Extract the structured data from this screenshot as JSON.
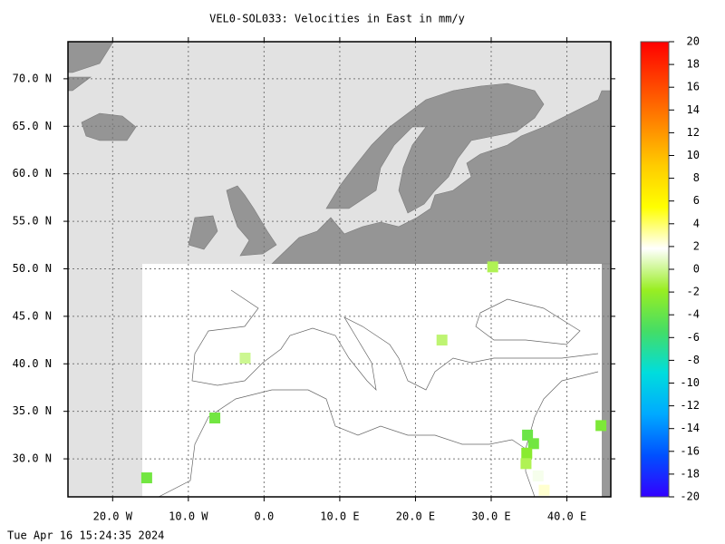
{
  "chart_data": {
    "type": "map",
    "title": "VEL0-SOL033: Velocities in East in mm/y",
    "timestamp": "Tue Apr 16 15:24:35 2024",
    "xlim": [
      -25.9,
      45.8
    ],
    "ylim": [
      26.0,
      73.9
    ],
    "xticks": [
      {
        "value": -20,
        "label": "20.0 W"
      },
      {
        "value": -10,
        "label": "10.0 W"
      },
      {
        "value": 0,
        "label": "0.0"
      },
      {
        "value": 10,
        "label": "10.0 E"
      },
      {
        "value": 20,
        "label": "20.0 E"
      },
      {
        "value": 30,
        "label": "30.0 E"
      },
      {
        "value": 40,
        "label": "40.0 E"
      }
    ],
    "yticks": [
      {
        "value": 30,
        "label": "30.0 N"
      },
      {
        "value": 35,
        "label": "35.0 N"
      },
      {
        "value": 40,
        "label": "40.0 N"
      },
      {
        "value": 45,
        "label": "45.0 N"
      },
      {
        "value": 50,
        "label": "50.0 N"
      },
      {
        "value": 55,
        "label": "55.0 N"
      },
      {
        "value": 60,
        "label": "60.0 N"
      },
      {
        "value": 65,
        "label": "65.0 N"
      },
      {
        "value": 70,
        "label": "70.0 N"
      }
    ],
    "grid": true,
    "clim": [
      -20,
      20
    ],
    "cticks": [
      -20,
      -18,
      -16,
      -14,
      -12,
      -10,
      -8,
      -6,
      -4,
      -2,
      0,
      2,
      4,
      6,
      8,
      10,
      12,
      14,
      16,
      18,
      20
    ],
    "colormap": [
      "#3300ff",
      "#0050ff",
      "#00aaff",
      "#00dddd",
      "#44dd66",
      "#99ee22",
      "#ffffff",
      "#ffff00",
      "#ffcc00",
      "#ff8800",
      "#ff4400",
      "#ff0000"
    ],
    "points": {
      "x": [
        30.2,
        -6.5,
        -15.5,
        34.8,
        35.6,
        34.7,
        34.6,
        36.2,
        37.0,
        44.5,
        23.5,
        -2.5
      ],
      "y": [
        50.2,
        34.3,
        28.0,
        32.5,
        31.6,
        30.6,
        29.5,
        28.2,
        26.7,
        33.5,
        42.5,
        40.6
      ],
      "values": [
        -1,
        -3.5,
        -3.5,
        -3.8,
        -3.5,
        -2.5,
        -1,
        1.5,
        2.5,
        -3,
        -0.5,
        0
      ]
    }
  }
}
